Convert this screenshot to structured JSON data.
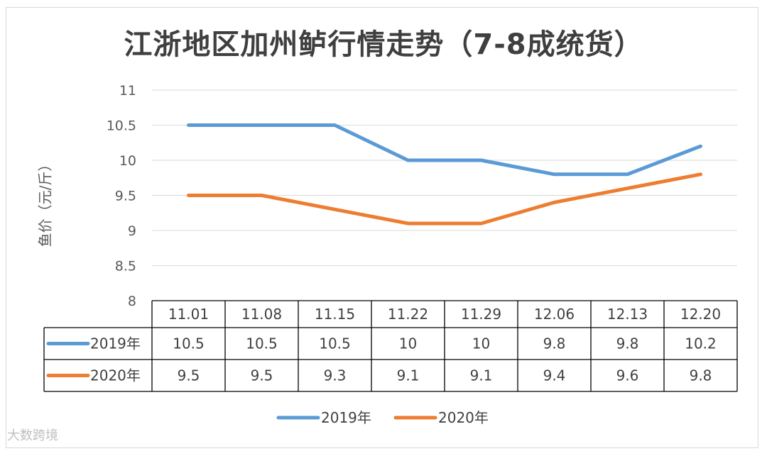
{
  "title": "江浙地区加州鲈行情走势（7-8成统货）",
  "watermark": "大数跨境",
  "chart_data": {
    "type": "line",
    "title": "江浙地区加州鲈行情走势（7-8成统货）",
    "ylabel": "鱼价（元/斤）",
    "xlabel": "",
    "ylim": [
      8,
      11
    ],
    "yticks": [
      "8",
      "8.5",
      "9",
      "9.5",
      "10",
      "10.5",
      "11"
    ],
    "categories": [
      "11.01",
      "11.08",
      "11.15",
      "11.22",
      "11.29",
      "12.06",
      "12.13",
      "12.20"
    ],
    "series": [
      {
        "name": "2019年",
        "color": "#5b9bd5",
        "values": [
          10.5,
          10.5,
          10.5,
          10,
          10,
          9.8,
          9.8,
          10.2
        ],
        "labels": [
          "10.5",
          "10.5",
          "10.5",
          "10",
          "10",
          "9.8",
          "9.8",
          "10.2"
        ]
      },
      {
        "name": "2020年",
        "color": "#ed7d31",
        "values": [
          9.5,
          9.5,
          9.3,
          9.1,
          9.1,
          9.4,
          9.6,
          9.8
        ],
        "labels": [
          "9.5",
          "9.5",
          "9.3",
          "9.1",
          "9.1",
          "9.4",
          "9.6",
          "9.8"
        ]
      }
    ],
    "grid": true,
    "legend": "bottom",
    "data_table": true
  }
}
